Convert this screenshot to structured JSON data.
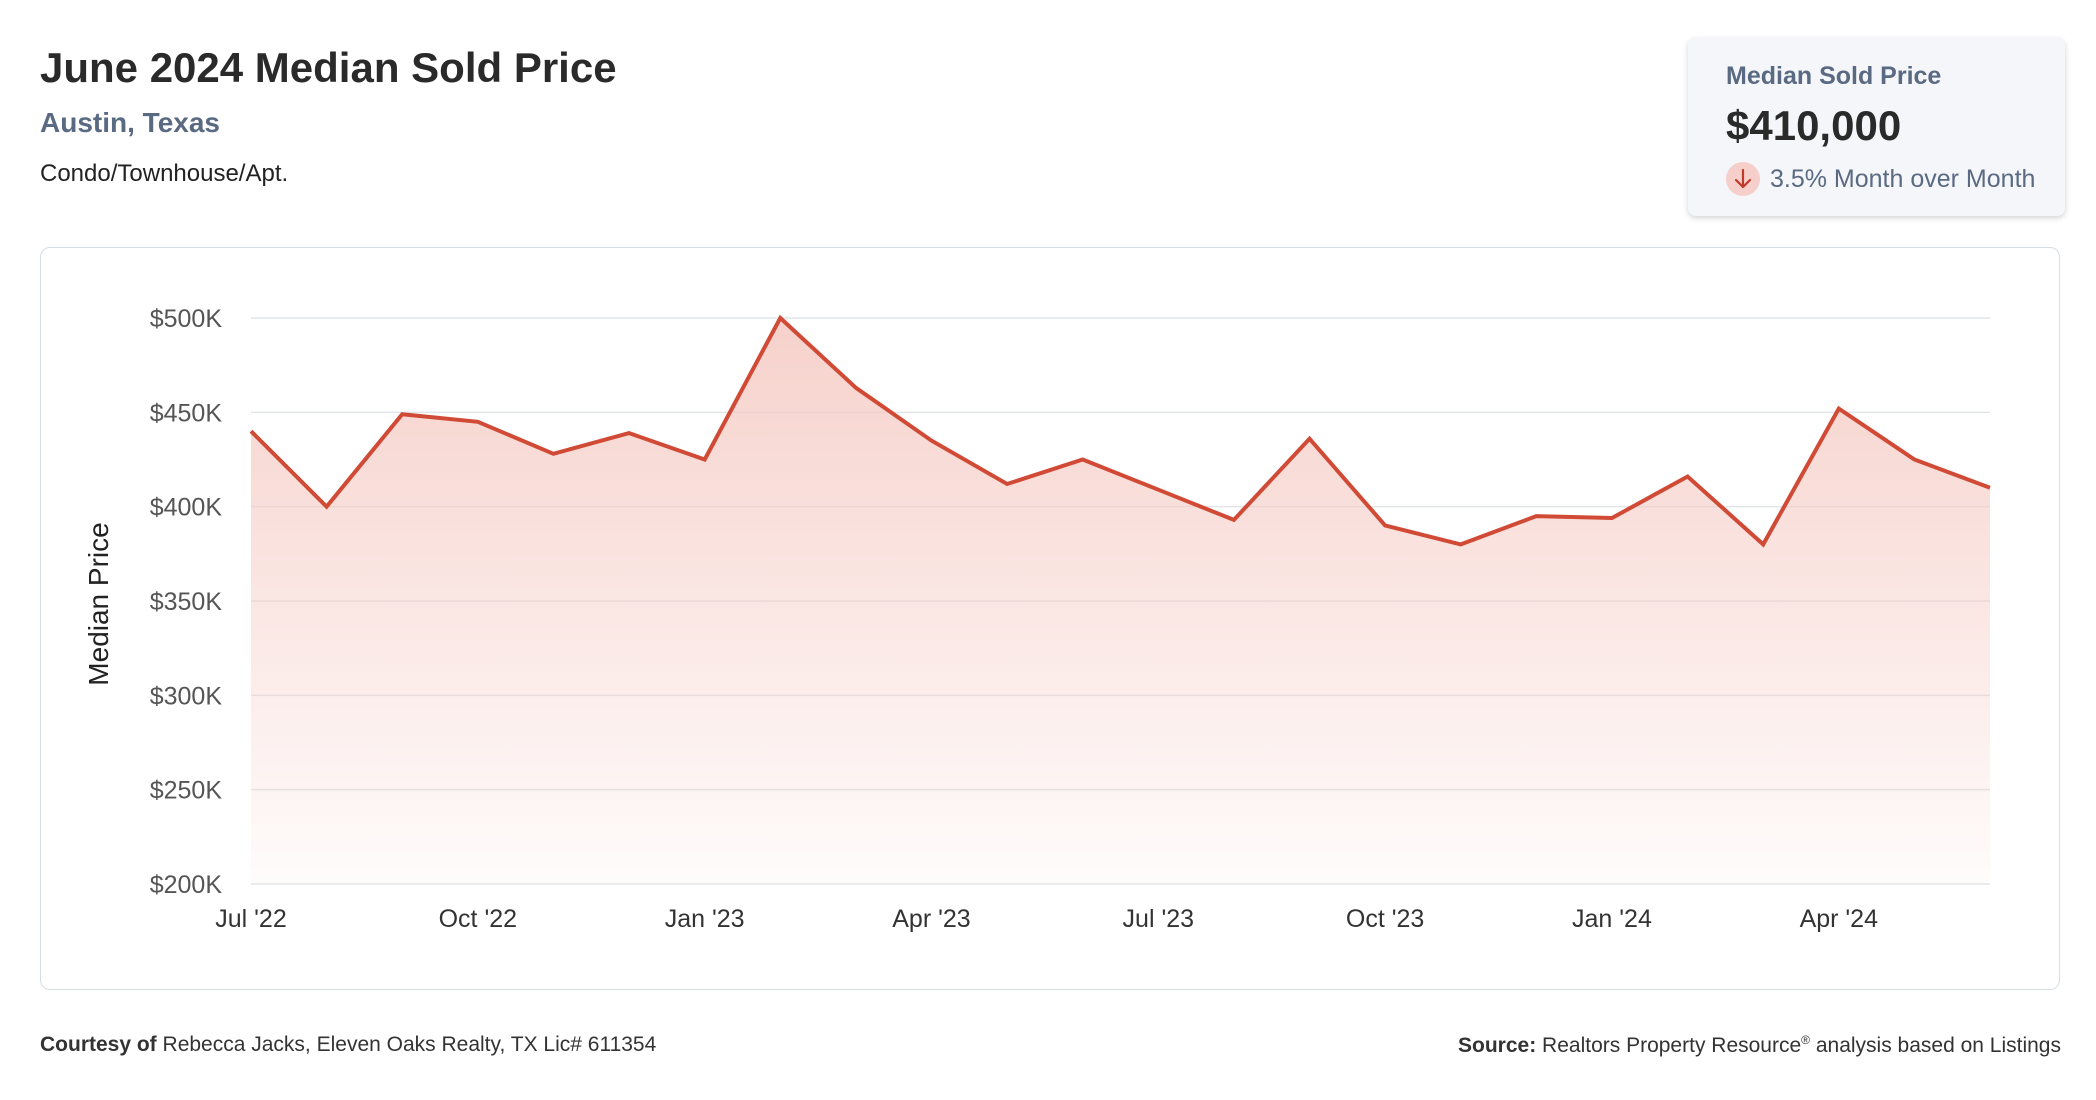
{
  "header": {
    "title": "June 2024 Median Sold Price",
    "location": "Austin, Texas",
    "category": "Condo/Townhouse/Apt."
  },
  "kpi": {
    "label": "Median Sold Price",
    "value": "$410,000",
    "change_text": "3.5% Month over Month",
    "change_direction": "down",
    "icon": "arrow-down-icon"
  },
  "colors": {
    "line": "#d04a35",
    "fill_top": "#f5c9c2",
    "grid": "#e2e6e8",
    "axis_text": "#555555",
    "subtitle": "#5a6a82"
  },
  "chart_data": {
    "type": "area",
    "ylabel": "Median Price",
    "xlabel": "",
    "ylim": [
      200000,
      500000
    ],
    "yticks": [
      {
        "value": 500000,
        "label": "$500K"
      },
      {
        "value": 450000,
        "label": "$450K"
      },
      {
        "value": 400000,
        "label": "$400K"
      },
      {
        "value": 350000,
        "label": "$350K"
      },
      {
        "value": 300000,
        "label": "$300K"
      },
      {
        "value": 250000,
        "label": "$250K"
      },
      {
        "value": 200000,
        "label": "$200K"
      }
    ],
    "xticks": [
      {
        "index": 0,
        "label": "Jul '22"
      },
      {
        "index": 3,
        "label": "Oct '22"
      },
      {
        "index": 6,
        "label": "Jan '23"
      },
      {
        "index": 9,
        "label": "Apr '23"
      },
      {
        "index": 12,
        "label": "Jul '23"
      },
      {
        "index": 15,
        "label": "Oct '23"
      },
      {
        "index": 18,
        "label": "Jan '24"
      },
      {
        "index": 21,
        "label": "Apr '24"
      }
    ],
    "x": [
      "2022-07",
      "2022-08",
      "2022-09",
      "2022-10",
      "2022-11",
      "2022-12",
      "2023-01",
      "2023-02",
      "2023-03",
      "2023-04",
      "2023-05",
      "2023-06",
      "2023-07",
      "2023-08",
      "2023-09",
      "2023-10",
      "2023-11",
      "2023-12",
      "2024-01",
      "2024-02",
      "2024-03",
      "2024-04",
      "2024-05",
      "2024-06"
    ],
    "values": [
      440000,
      400000,
      449000,
      445000,
      428000,
      439000,
      425000,
      500000,
      463000,
      435000,
      412000,
      425000,
      409000,
      393000,
      436000,
      390000,
      380000,
      395000,
      394000,
      416000,
      380000,
      452000,
      425000,
      410000
    ],
    "grid": true
  },
  "footer": {
    "courtesy_label": "Courtesy of",
    "courtesy_text": "Rebecca Jacks, Eleven Oaks Realty, TX Lic# 611354",
    "source_label": "Source:",
    "source_text_1": "Realtors Property Resource",
    "source_sup": "®",
    "source_text_2": " analysis based on Listings"
  }
}
